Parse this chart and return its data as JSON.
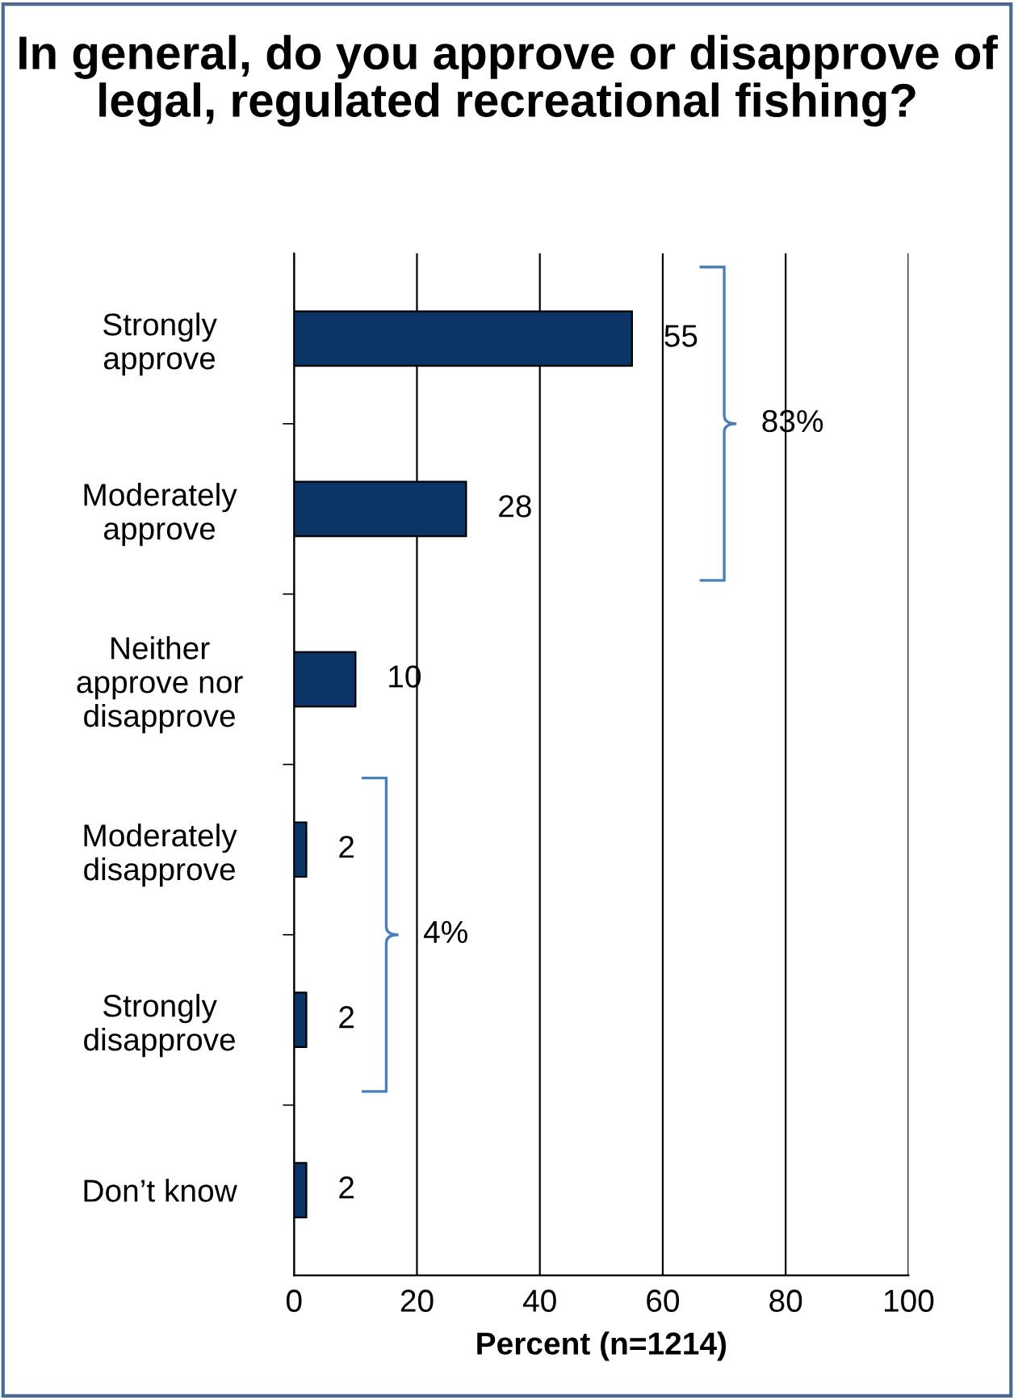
{
  "chart_data": {
    "type": "bar",
    "orientation": "horizontal",
    "title": "In general, do you approve or disapprove of legal, regulated recreational fishing?",
    "xlabel": "Percent (n=1214)",
    "categories": [
      "Strongly\napprove",
      "Moderately\napprove",
      "Neither\napprove nor\ndisapprove",
      "Moderately\ndisapprove",
      "Strongly\ndisapprove",
      "Don’t know"
    ],
    "values": [
      55,
      28,
      10,
      2,
      2,
      2
    ],
    "color": "#0b3466",
    "data_labels": true,
    "xlim": [
      0,
      100
    ],
    "xticks": [
      0,
      20,
      40,
      60,
      80,
      100
    ],
    "grid": "x",
    "legend": false,
    "annotations": [
      "83%",
      "4%"
    ]
  }
}
